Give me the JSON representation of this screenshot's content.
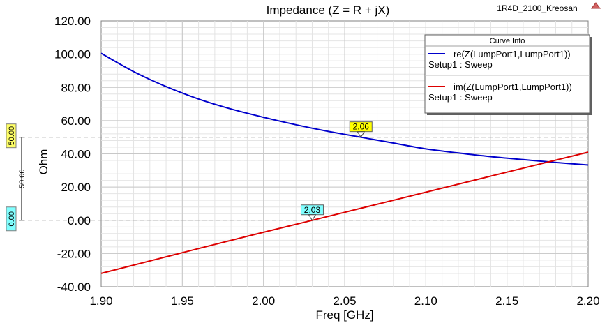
{
  "chart_data": {
    "type": "line",
    "title": "Impedance (Z = R + jX)",
    "project_label": "1R4D_2100_Kreosan",
    "xlabel": "Freq [GHz]",
    "ylabel": "Ohm",
    "xlim": [
      1.9,
      2.2
    ],
    "ylim": [
      -40,
      120
    ],
    "x_ticks": [
      "1.90",
      "1.95",
      "2.00",
      "2.05",
      "2.10",
      "2.15",
      "2.20"
    ],
    "y_ticks": [
      "-40.00",
      "-20.00",
      "0.00",
      "20.00",
      "40.00",
      "60.00",
      "80.00",
      "100.00",
      "120.00"
    ],
    "grid": true,
    "legend_position": "top-right",
    "legend_title": "Curve Info",
    "series": [
      {
        "name": "re(Z(LumpPort1,LumpPort1))",
        "sub": "Setup1 : Sweep",
        "color": "#0000cc",
        "x": [
          1.9,
          1.92,
          1.94,
          1.96,
          1.98,
          2.0,
          2.02,
          2.04,
          2.06,
          2.08,
          2.1,
          2.12,
          2.14,
          2.16,
          2.18,
          2.2
        ],
        "y": [
          100.5,
          89.5,
          80.5,
          73.0,
          67.0,
          62.0,
          57.5,
          53.5,
          50.0,
          46.5,
          43.0,
          40.5,
          38.3,
          36.5,
          34.8,
          33.3
        ]
      },
      {
        "name": "im(Z(LumpPort1,LumpPort1))",
        "sub": "Setup1 : Sweep",
        "color": "#dd0000",
        "x": [
          1.9,
          1.95,
          2.0,
          2.03,
          2.05,
          2.1,
          2.15,
          2.2
        ],
        "y": [
          -32.0,
          -19.5,
          -7.2,
          0.0,
          4.8,
          16.9,
          29.0,
          41.0
        ]
      }
    ],
    "markers": [
      {
        "label": "2.06",
        "x": 2.06,
        "y": 50.0,
        "color": "#ffff00"
      },
      {
        "label": "2.03",
        "x": 2.03,
        "y": 0.0,
        "color": "#80ffff"
      }
    ],
    "reference_lines": [
      {
        "value": 50,
        "label": "50.00",
        "color": "#ffff66"
      },
      {
        "value": 0,
        "label": "0.00",
        "color": "#80ffff"
      }
    ],
    "side_label": "50.00"
  }
}
